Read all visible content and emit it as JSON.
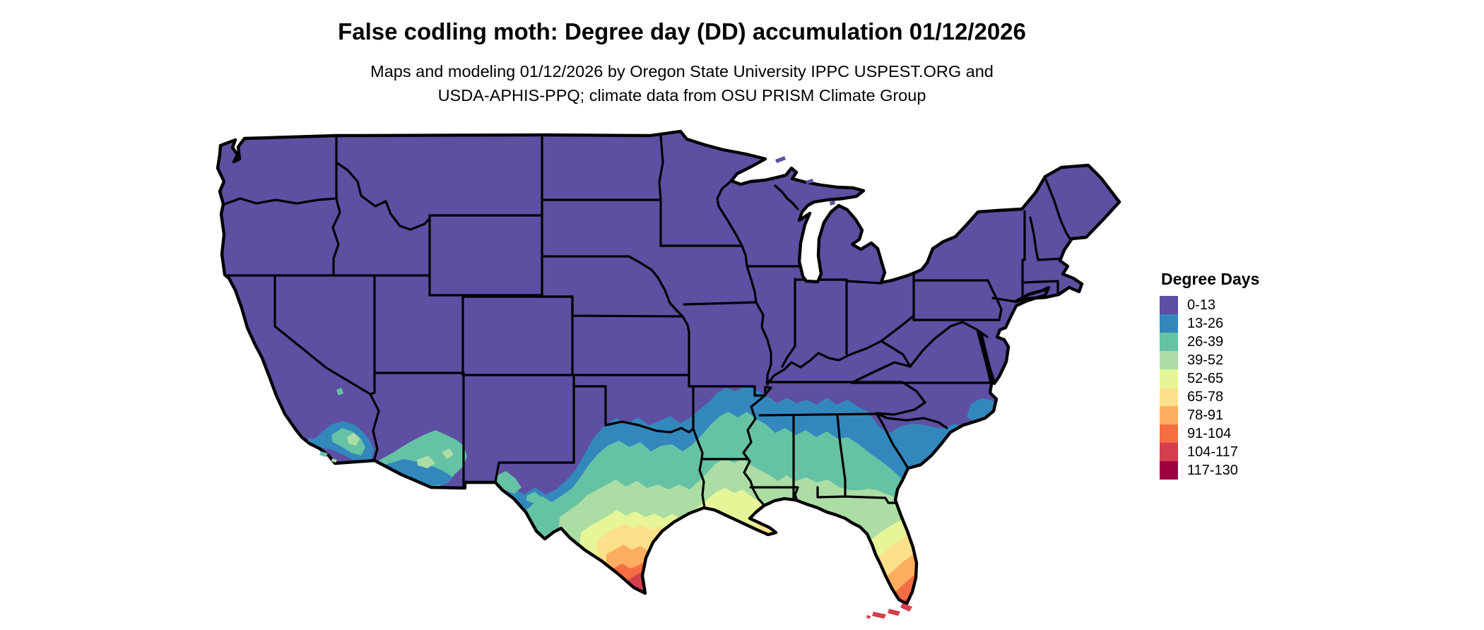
{
  "header": {
    "title": "False codling moth: Degree day (DD) accumulation 01/12/2026",
    "subtitle_line1": "Maps and modeling 01/12/2026 by Oregon State University IPPC USPEST.ORG and",
    "subtitle_line2": "USDA-APHIS-PPQ; climate data from OSU PRISM Climate Group"
  },
  "legend": {
    "title": "Degree Days",
    "items": [
      {
        "label": "0-13",
        "color": "#5e4fa2"
      },
      {
        "label": "13-26",
        "color": "#3288bd"
      },
      {
        "label": "26-39",
        "color": "#66c2a5"
      },
      {
        "label": "39-52",
        "color": "#abdda4"
      },
      {
        "label": "52-65",
        "color": "#e6f598"
      },
      {
        "label": "65-78",
        "color": "#fee08b"
      },
      {
        "label": "78-91",
        "color": "#fdae61"
      },
      {
        "label": "91-104",
        "color": "#f46d43"
      },
      {
        "label": "104-117",
        "color": "#d53e4f"
      },
      {
        "label": "117-130",
        "color": "#9e0142"
      }
    ]
  },
  "chart_data": {
    "type": "choropleth-map",
    "title": "False codling moth: Degree day (DD) accumulation 01/12/2026",
    "legend_title": "Degree Days",
    "unit": "degree days",
    "region": "contiguous United States",
    "bins": [
      {
        "range": "0-13",
        "color": "#5e4fa2"
      },
      {
        "range": "13-26",
        "color": "#3288bd"
      },
      {
        "range": "26-39",
        "color": "#66c2a5"
      },
      {
        "range": "39-52",
        "color": "#abdda4"
      },
      {
        "range": "52-65",
        "color": "#e6f598"
      },
      {
        "range": "65-78",
        "color": "#fee08b"
      },
      {
        "range": "78-91",
        "color": "#fdae61"
      },
      {
        "range": "91-104",
        "color": "#f46d43"
      },
      {
        "range": "104-117",
        "color": "#d53e4f"
      },
      {
        "range": "117-130",
        "color": "#9e0142"
      }
    ]
  }
}
